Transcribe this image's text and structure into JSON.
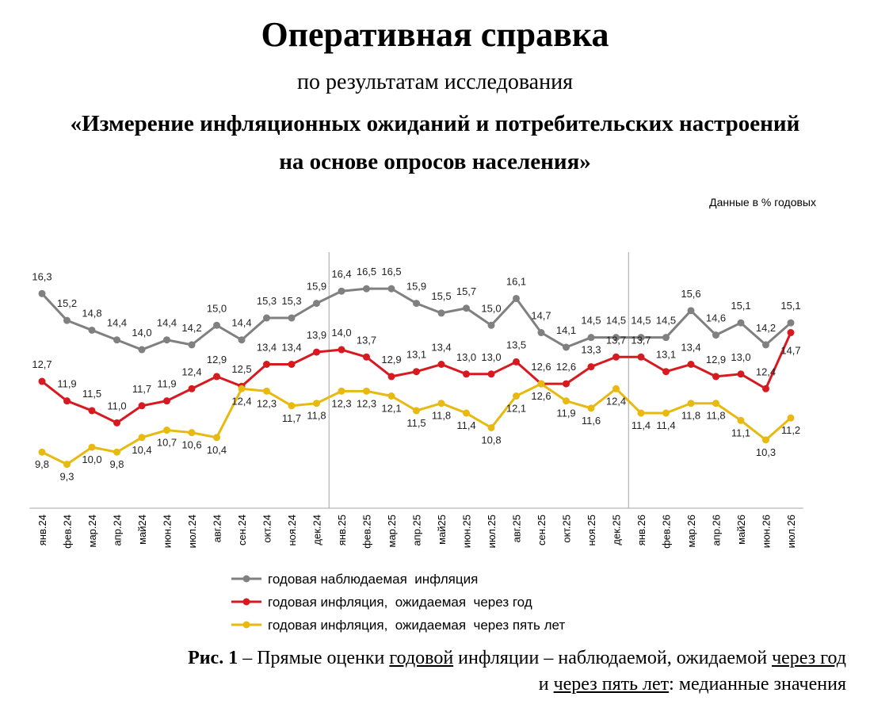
{
  "header": {
    "title": "Оперативная справка",
    "subtitle": "по результатам исследования",
    "heading_line1": "«Измерение инфляционных ожиданий и потребительских настроений",
    "heading_line2": "на основе опросов населения»",
    "units": "Данные в % годовых"
  },
  "caption": {
    "fig_label": "Рис. 1",
    "dash": " – Прямые оценки ",
    "word_annual": "годовой",
    "mid1": " инфляции – наблюдаемой, ожидаемой ",
    "word_year": "через год",
    "and": "и ",
    "word_five": "через пять лет",
    "tail": ": медианные значения"
  },
  "chart_data": {
    "type": "line",
    "categories": [
      "янв.24",
      "фев.24",
      "мар.24",
      "апр.24",
      "май24",
      "июн.24",
      "июл.24",
      "авг.24",
      "сен.24",
      "окт.24",
      "ноя.24",
      "дек.24",
      "янв.25",
      "фев.25",
      "мар.25",
      "апр.25",
      "май25",
      "июн.25",
      "июл.25",
      "авг.25",
      "сен.25",
      "окт.25",
      "ноя.25",
      "дек.25",
      "янв.26",
      "фев.26",
      "мар.26",
      "апр.26",
      "май26",
      "июн.26",
      "июл.26"
    ],
    "series": [
      {
        "name": "годовая наблюдаемая  инфляция",
        "color": "#808080",
        "values": [
          16.3,
          15.2,
          14.8,
          14.4,
          14.0,
          14.4,
          14.2,
          15.0,
          14.4,
          15.3,
          15.3,
          15.9,
          16.4,
          16.5,
          16.5,
          15.9,
          15.5,
          15.7,
          15.0,
          16.1,
          14.7,
          14.1,
          14.5,
          14.5,
          14.5,
          14.5,
          15.6,
          14.6,
          15.1,
          14.2,
          15.1
        ],
        "labels": [
          "16,3",
          "15,2",
          "14,8",
          "14,4",
          "14,0",
          "14,4",
          "14,2",
          "15,0",
          "14,4",
          "15,3",
          "15,3",
          "15,9",
          "16,4",
          "16,5",
          "16,5",
          "15,9",
          "15,5",
          "15,7",
          "15,0",
          "16,1",
          "14,7",
          "14,1",
          "14,5",
          "14,5",
          "14,5",
          "14,5",
          "15,6",
          "14,6",
          "15,1",
          "14,2",
          "15,1"
        ]
      },
      {
        "name": "годовая инфляция,  ожидаемая  через год",
        "color": "#d71920",
        "values": [
          12.7,
          11.9,
          11.5,
          11.0,
          11.7,
          11.9,
          12.4,
          12.9,
          12.5,
          13.4,
          13.4,
          13.9,
          14.0,
          13.7,
          12.9,
          13.1,
          13.4,
          13.0,
          13.0,
          13.5,
          12.6,
          12.6,
          13.3,
          13.7,
          13.7,
          13.1,
          13.4,
          12.9,
          13.0,
          12.4,
          14.7
        ],
        "labels": [
          "12,7",
          "11,9",
          "11,5",
          "11,0",
          "11,7",
          "11,9",
          "12,4",
          "12,9",
          "12,5",
          "13,4",
          "13,4",
          "13,9",
          "14,0",
          "13,7",
          "12,9",
          "13,1",
          "13,4",
          "13,0",
          "13,0",
          "13,5",
          "12,6",
          "12,6",
          "13,3",
          "13,7",
          "13,7",
          "13,1",
          "13,4",
          "12,9",
          "13,0",
          "12,4",
          "14,7"
        ]
      },
      {
        "name": "годовая инфляция,  ожидаемая  через пять лет",
        "color": "#e8b90f",
        "values": [
          9.8,
          9.3,
          10.0,
          9.8,
          10.4,
          10.7,
          10.6,
          10.4,
          12.4,
          12.3,
          11.7,
          11.8,
          12.3,
          12.3,
          12.1,
          11.5,
          11.8,
          11.4,
          10.8,
          12.1,
          12.6,
          11.9,
          11.6,
          12.4,
          11.4,
          11.4,
          11.8,
          11.8,
          11.1,
          10.3,
          11.2
        ],
        "labels": [
          "9,8",
          "9,3",
          "10,0",
          "9,8",
          "10,4",
          "10,7",
          "10,6",
          "10,4",
          "12,4",
          "12,3",
          "11,7",
          "11,8",
          "12,3",
          "12,3",
          "12,1",
          "11,5",
          "11,8",
          "11,4",
          "10,8",
          "12,1",
          "12,6",
          "11,9",
          "11,6",
          "12,4",
          "11,4",
          "11,4",
          "11,8",
          "11,8",
          "11,1",
          "10,3",
          "11,2"
        ]
      }
    ],
    "ylim": [
      7.5,
      18.0
    ],
    "year_separators_after": [
      "дек.24",
      "дек.25"
    ],
    "grid": false,
    "legend_position": "bottom"
  }
}
